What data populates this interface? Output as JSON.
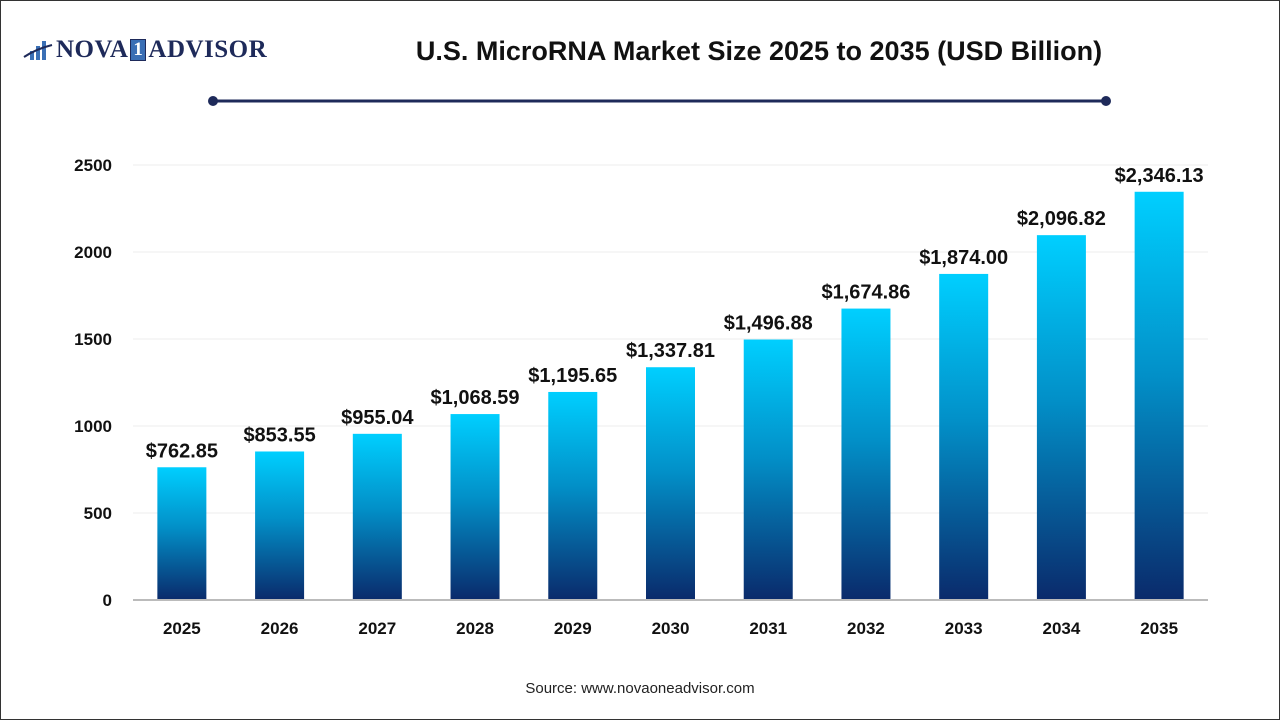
{
  "logo": {
    "text_left": "NOVA",
    "text_mid": "1",
    "text_right": "ADVISOR"
  },
  "source": "Source: www.novaoneadvisor.com",
  "colors": {
    "bar_top": "#00cfff",
    "bar_bottom": "#0a2a6b",
    "rule": "#1e2a5a"
  },
  "chart_data": {
    "type": "bar",
    "title": "U.S. MicroRNA Market Size 2025 to 2035 (USD Billion)",
    "xlabel": "",
    "ylabel": "",
    "categories": [
      "2025",
      "2026",
      "2027",
      "2028",
      "2029",
      "2030",
      "2031",
      "2032",
      "2033",
      "2034",
      "2035"
    ],
    "values": [
      762.85,
      853.55,
      955.04,
      1068.59,
      1195.65,
      1337.81,
      1496.88,
      1674.86,
      1874.0,
      2096.82,
      2346.13
    ],
    "data_labels": [
      "$762.85",
      "$853.55",
      "$955.04",
      "$1,068.59",
      "$1,195.65",
      "$1,337.81",
      "$1,496.88",
      "$1,674.86",
      "$1,874.00",
      "$2,096.82",
      "$2,346.13"
    ],
    "ylim": [
      0,
      2500
    ],
    "yticks": [
      0,
      500,
      1000,
      1500,
      2000,
      2500
    ],
    "grid": true,
    "legend": "none"
  }
}
